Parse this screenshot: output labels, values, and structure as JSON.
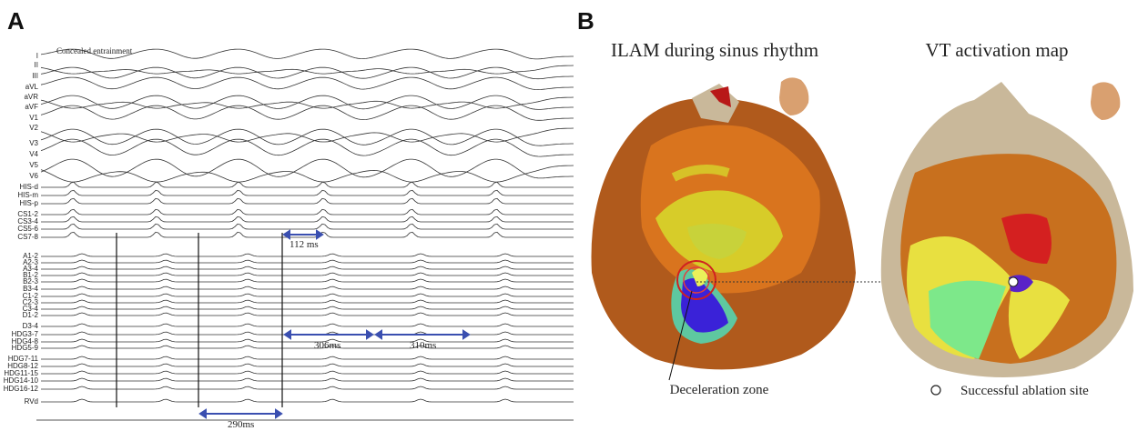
{
  "panel_a": {
    "label": "A",
    "annotation": "Concealed entrainment",
    "channels": [
      "I",
      "II",
      "III",
      "aVL",
      "aVR",
      "aVF",
      "V1",
      "V2",
      "V3",
      "V4",
      "V5",
      "V6",
      "HIS-d",
      "HIS-m",
      "HIS-p",
      "CS1-2",
      "CS3-4",
      "CS5-6",
      "CS7-8",
      "A1-2",
      "A2-3",
      "A3-4",
      "B1-2",
      "B2-3",
      "B3-4",
      "C1-2",
      "C2-3",
      "C3-4",
      "D1-2",
      "D3-4",
      "HDG3-7",
      "HDG4-8",
      "HDG5-9",
      "HDG7-11",
      "HDG8-12",
      "HDG11-15",
      "HDG14-10",
      "HDG16-12",
      "RVd"
    ],
    "intervals": [
      "112 ms",
      "306ms",
      "310ms",
      "290ms"
    ]
  },
  "panel_b": {
    "label": "B",
    "left_title": "ILAM during sinus rhythm",
    "right_title": "VT activation map",
    "left_annotation": "Deceleration zone",
    "legend": "Successful ablation site"
  }
}
